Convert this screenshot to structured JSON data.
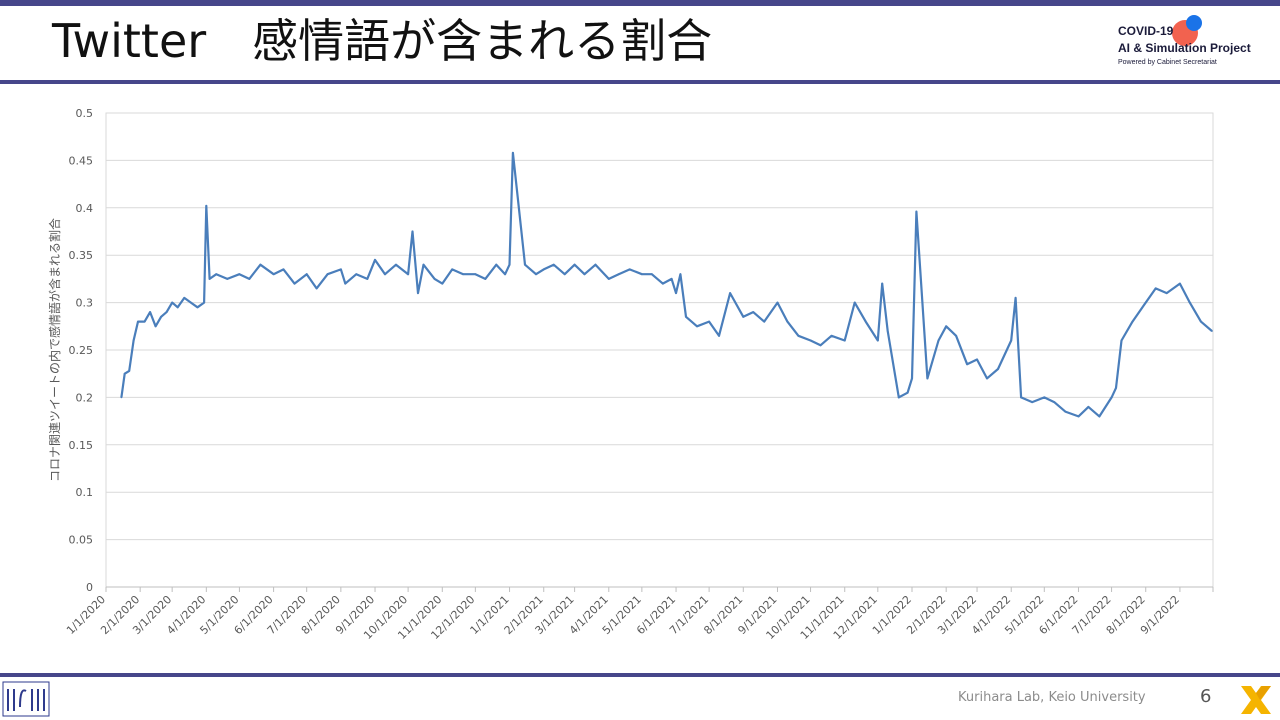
{
  "slide": {
    "title": "Twitter　感情語が含まれる割合",
    "logo": {
      "line1": "COVID-19",
      "line2": "AI & Simulation Project",
      "line3": "Powered by Cabinet Secretariat"
    },
    "footer": "Kurihara Lab, Keio University",
    "page_number": "6"
  },
  "colors": {
    "accent": "#46468a",
    "line": "#4a7ebb",
    "logo_red": "#f2624f",
    "logo_blue": "#1a73e8",
    "x_mark": "#f5b400"
  },
  "chart_data": {
    "type": "line",
    "ylabel": "コロナ関連ツイートの内で感情語が含まれる割合",
    "ylim": [
      0,
      0.5
    ],
    "y_ticks": [
      "0",
      "0.05",
      "0.1",
      "0.15",
      "0.2",
      "0.25",
      "0.3",
      "0.35",
      "0.4",
      "0.45",
      "0.5"
    ],
    "x_start": "2020-01-01",
    "x_end": "2022-10-01",
    "x_tick_labels": [
      "1/1/2020",
      "2/1/2020",
      "3/1/2020",
      "4/1/2020",
      "5/1/2020",
      "6/1/2020",
      "7/1/2020",
      "8/1/2020",
      "9/1/2020",
      "10/1/2020",
      "11/1/2020",
      "12/1/2020",
      "1/1/2021",
      "2/1/2021",
      "3/1/2021",
      "4/1/2021",
      "5/1/2021",
      "6/1/2021",
      "7/1/2021",
      "8/1/2021",
      "9/1/2021",
      "10/1/2021",
      "11/1/2021",
      "12/1/2021",
      "1/1/2022",
      "2/1/2022",
      "3/1/2022",
      "4/1/2022",
      "5/1/2022",
      "6/1/2022",
      "7/1/2022",
      "8/1/2022",
      "9/1/2022"
    ],
    "gridlines": "horizontal",
    "series": [
      {
        "x": [
          "2020-01-15",
          "2020-01-18",
          "2020-01-22",
          "2020-01-26",
          "2020-01-30",
          "2020-02-05",
          "2020-02-10",
          "2020-02-15",
          "2020-02-20",
          "2020-02-25",
          "2020-03-01",
          "2020-03-06",
          "2020-03-12",
          "2020-03-18",
          "2020-03-24",
          "2020-03-30",
          "2020-04-01",
          "2020-04-04",
          "2020-04-10",
          "2020-04-20",
          "2020-05-01",
          "2020-05-10",
          "2020-05-20",
          "2020-06-01",
          "2020-06-10",
          "2020-06-20",
          "2020-07-01",
          "2020-07-10",
          "2020-07-20",
          "2020-08-01",
          "2020-08-05",
          "2020-08-15",
          "2020-08-25",
          "2020-09-01",
          "2020-09-10",
          "2020-09-20",
          "2020-10-01",
          "2020-10-05",
          "2020-10-10",
          "2020-10-15",
          "2020-10-25",
          "2020-11-01",
          "2020-11-10",
          "2020-11-20",
          "2020-12-01",
          "2020-12-10",
          "2020-12-20",
          "2020-12-28",
          "2021-01-01",
          "2021-01-04",
          "2021-01-15",
          "2021-01-25",
          "2021-02-01",
          "2021-02-10",
          "2021-02-20",
          "2021-03-01",
          "2021-03-10",
          "2021-03-20",
          "2021-04-01",
          "2021-04-10",
          "2021-04-20",
          "2021-05-01",
          "2021-05-10",
          "2021-05-20",
          "2021-05-28",
          "2021-06-01",
          "2021-06-05",
          "2021-06-10",
          "2021-06-20",
          "2021-07-01",
          "2021-07-10",
          "2021-07-20",
          "2021-08-01",
          "2021-08-10",
          "2021-08-20",
          "2021-09-01",
          "2021-09-10",
          "2021-09-20",
          "2021-10-01",
          "2021-10-10",
          "2021-10-20",
          "2021-11-01",
          "2021-11-10",
          "2021-11-20",
          "2021-12-01",
          "2021-12-05",
          "2021-12-10",
          "2021-12-20",
          "2021-12-28",
          "2022-01-01",
          "2022-01-05",
          "2022-01-15",
          "2022-01-25",
          "2022-02-01",
          "2022-02-10",
          "2022-02-20",
          "2022-03-01",
          "2022-03-10",
          "2022-03-20",
          "2022-04-01",
          "2022-04-05",
          "2022-04-10",
          "2022-04-20",
          "2022-05-01",
          "2022-05-10",
          "2022-05-20",
          "2022-06-01",
          "2022-06-10",
          "2022-06-20",
          "2022-07-01",
          "2022-07-05",
          "2022-07-10",
          "2022-07-20",
          "2022-08-01",
          "2022-08-10",
          "2022-08-20",
          "2022-09-01",
          "2022-09-10",
          "2022-09-20",
          "2022-09-30"
        ],
        "values": [
          0.2,
          0.225,
          0.228,
          0.26,
          0.28,
          0.28,
          0.29,
          0.275,
          0.285,
          0.29,
          0.3,
          0.295,
          0.305,
          0.3,
          0.295,
          0.3,
          0.402,
          0.325,
          0.33,
          0.325,
          0.33,
          0.325,
          0.34,
          0.33,
          0.335,
          0.32,
          0.33,
          0.315,
          0.33,
          0.335,
          0.32,
          0.33,
          0.325,
          0.345,
          0.33,
          0.34,
          0.33,
          0.375,
          0.31,
          0.34,
          0.325,
          0.32,
          0.335,
          0.33,
          0.33,
          0.325,
          0.34,
          0.33,
          0.34,
          0.458,
          0.34,
          0.33,
          0.335,
          0.34,
          0.33,
          0.34,
          0.33,
          0.34,
          0.325,
          0.33,
          0.335,
          0.33,
          0.33,
          0.32,
          0.325,
          0.31,
          0.33,
          0.285,
          0.275,
          0.28,
          0.265,
          0.31,
          0.285,
          0.29,
          0.28,
          0.3,
          0.28,
          0.265,
          0.26,
          0.255,
          0.265,
          0.26,
          0.3,
          0.28,
          0.26,
          0.32,
          0.27,
          0.2,
          0.205,
          0.22,
          0.396,
          0.22,
          0.26,
          0.275,
          0.265,
          0.235,
          0.24,
          0.22,
          0.23,
          0.26,
          0.305,
          0.2,
          0.195,
          0.2,
          0.195,
          0.185,
          0.18,
          0.19,
          0.18,
          0.2,
          0.21,
          0.26,
          0.28,
          0.3,
          0.315,
          0.31,
          0.32,
          0.3,
          0.28,
          0.27
        ]
      }
    ]
  }
}
